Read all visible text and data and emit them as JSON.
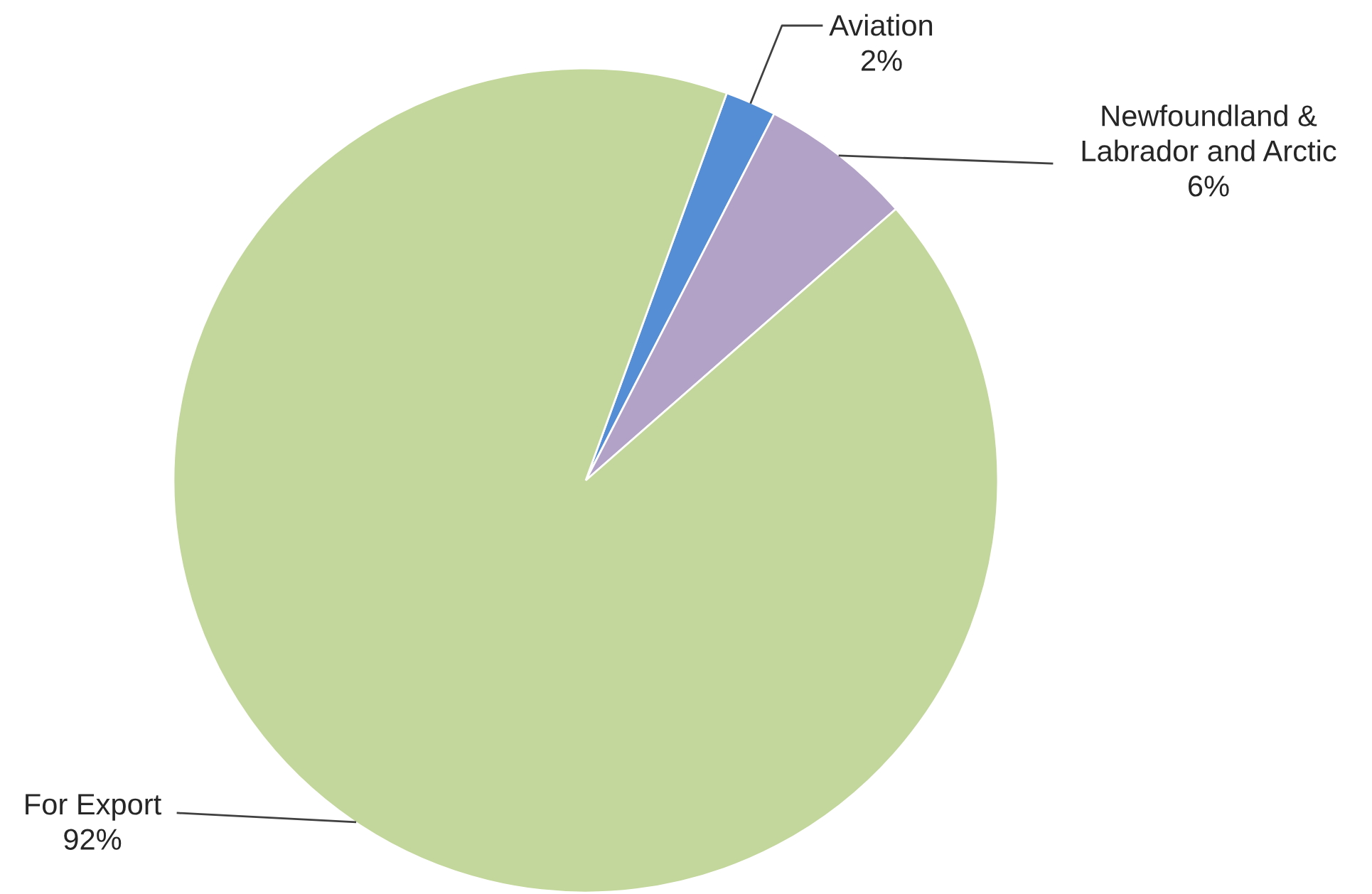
{
  "chart_data": {
    "type": "pie",
    "categories": [
      "Aviation",
      "Newfoundland &\nLabrador and Arctic",
      "For Export"
    ],
    "values": [
      2,
      6,
      92
    ],
    "value_labels": [
      "2%",
      "6%",
      "92%"
    ],
    "colors": [
      "#558ed5",
      "#b3a2c7",
      "#c3d69b"
    ],
    "legend": false
  }
}
